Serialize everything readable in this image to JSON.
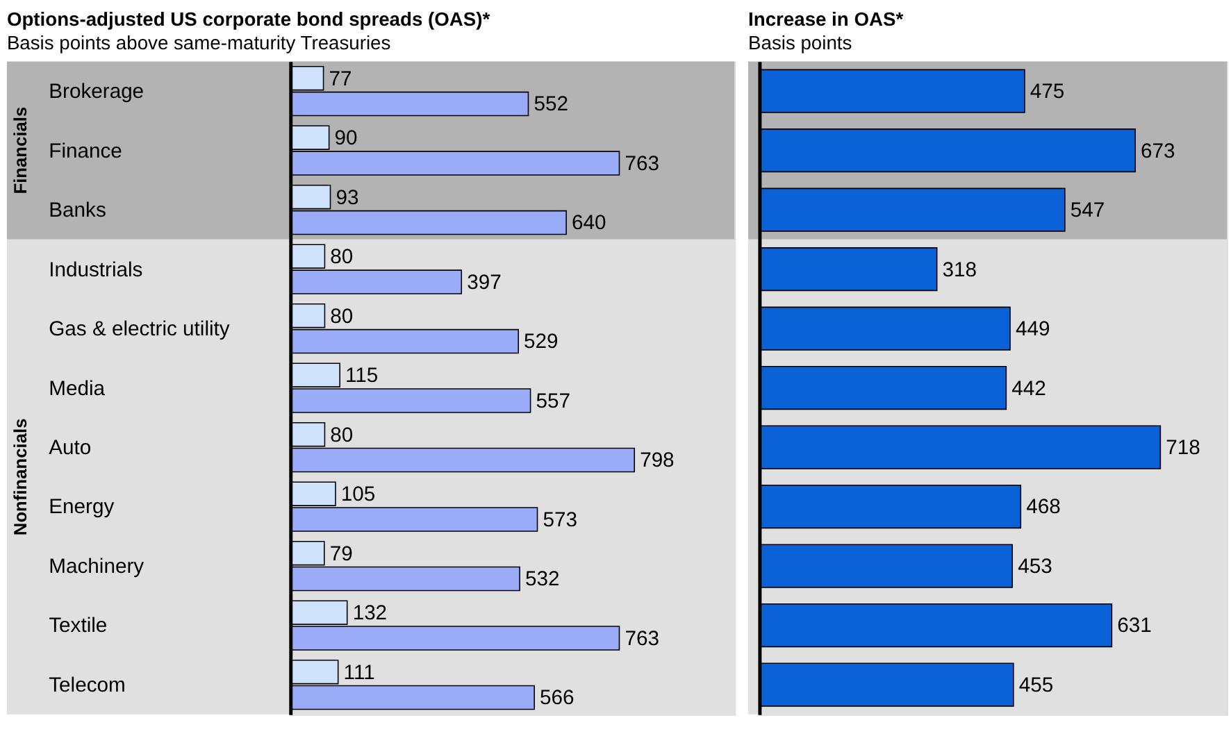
{
  "chart_data": [
    {
      "type": "bar",
      "orientation": "horizontal",
      "title": "Options-adjusted US corporate bond spreads (OAS)*",
      "subtitle": "Basis points above same-maturity Treasuries",
      "categories": [
        "Brokerage",
        "Finance",
        "Banks",
        "Industrials",
        "Gas & electric utility",
        "Media",
        "Auto",
        "Energy",
        "Machinery",
        "Textile",
        "Telecom"
      ],
      "series": [
        {
          "color": "#cfe2fb",
          "values": [
            77,
            90,
            93,
            80,
            80,
            115,
            80,
            105,
            79,
            132,
            111
          ]
        },
        {
          "color": "#9aabf7",
          "values": [
            552,
            763,
            640,
            397,
            529,
            557,
            798,
            573,
            532,
            763,
            566
          ]
        }
      ],
      "xlim": [
        0,
        1030
      ],
      "data_labels": true,
      "tick_labels": "y",
      "legend": false,
      "grid": false,
      "bands": [
        {
          "axis": "y",
          "from": "Brokerage",
          "to": "Banks",
          "label": "Financials",
          "color": "#b3b3b3"
        },
        {
          "axis": "y",
          "from": "Industrials",
          "to": "Telecom",
          "label": "Nonfinancials",
          "color": "#e0e0e0"
        }
      ]
    },
    {
      "type": "bar",
      "orientation": "horizontal",
      "title": "Increase in OAS*",
      "subtitle": "Basis points",
      "categories": [
        "Brokerage",
        "Finance",
        "Banks",
        "Industrials",
        "Gas & electric utility",
        "Media",
        "Auto",
        "Energy",
        "Machinery",
        "Textile",
        "Telecom"
      ],
      "values": [
        475,
        673,
        547,
        318,
        449,
        442,
        718,
        468,
        453,
        631,
        455
      ],
      "color": "#0b62d6",
      "xlim": [
        0,
        837
      ],
      "data_labels": true,
      "tick_labels": false,
      "legend": false,
      "grid": false,
      "bands": [
        {
          "axis": "y",
          "from": "Brokerage",
          "to": "Banks",
          "label": null,
          "color": "#b3b3b3"
        },
        {
          "axis": "y",
          "from": "Industrials",
          "to": "Telecom",
          "label": null,
          "color": "#e0e0e0"
        }
      ]
    }
  ]
}
